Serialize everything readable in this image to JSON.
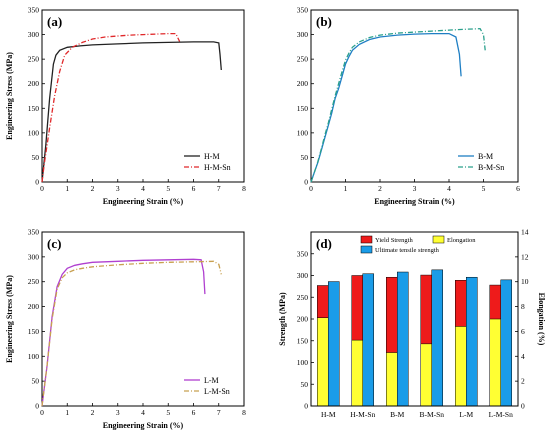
{
  "chart_data": [
    {
      "type": "line",
      "panel_label": "(a)",
      "xlabel": "Engineering Strain (%)",
      "ylabel": "Engineering Stress (MPa)",
      "xlim": [
        0,
        8
      ],
      "ylim": [
        0,
        350
      ],
      "xticks": [
        "0",
        "1",
        "2",
        "3",
        "4",
        "5",
        "6",
        "7",
        "8"
      ],
      "yticks": [
        "0",
        "50",
        "100",
        "150",
        "200",
        "250",
        "300",
        "350"
      ],
      "legend_position": "bottom-right",
      "series": [
        {
          "name": "H-M",
          "color": "#222222",
          "dash": "solid",
          "x": [
            0,
            0.15,
            0.3,
            0.45,
            0.55,
            0.7,
            1.0,
            1.5,
            2.0,
            3.0,
            4.0,
            5.0,
            6.0,
            6.8,
            7.0,
            7.05,
            7.1
          ],
          "y": [
            0,
            75,
            170,
            240,
            258,
            268,
            274,
            277,
            279,
            281,
            283,
            284,
            285,
            285,
            283,
            260,
            228
          ]
        },
        {
          "name": "H-M-Sn",
          "color": "#e0282a",
          "dash": "dashdot",
          "x": [
            0,
            0.1,
            0.3,
            0.5,
            0.7,
            0.9,
            1.2,
            1.6,
            2.0,
            2.5,
            3.0,
            3.5,
            4.0,
            4.5,
            5.0,
            5.3,
            5.45
          ],
          "y": [
            0,
            40,
            110,
            175,
            225,
            258,
            274,
            284,
            291,
            295,
            297,
            299,
            300,
            301,
            302,
            302,
            286
          ]
        }
      ]
    },
    {
      "type": "line",
      "panel_label": "(b)",
      "xlabel": "Engineering Strain (%)",
      "ylabel": "",
      "xlim": [
        0,
        6
      ],
      "ylim": [
        0,
        350
      ],
      "xticks": [
        "0",
        "1",
        "2",
        "3",
        "4",
        "5",
        "6"
      ],
      "yticks": [
        "0",
        "50",
        "100",
        "150",
        "200",
        "250",
        "300",
        "350"
      ],
      "legend_position": "bottom-right",
      "series": [
        {
          "name": "B-M",
          "color": "#1f7fc4",
          "dash": "solid",
          "x": [
            0,
            0.1,
            0.2,
            0.3,
            0.4,
            0.5,
            0.6,
            0.7,
            0.8,
            0.9,
            1.0,
            1.1,
            1.2,
            1.4,
            1.7,
            2.0,
            2.5,
            3.0,
            3.5,
            4.0,
            4.2,
            4.3,
            4.35
          ],
          "y": [
            0,
            20,
            40,
            65,
            90,
            115,
            140,
            170,
            190,
            215,
            240,
            255,
            268,
            280,
            290,
            295,
            299,
            301,
            302,
            302,
            295,
            260,
            215
          ]
        },
        {
          "name": "B-M-Sn",
          "color": "#2aa08c",
          "dash": "dashdot",
          "x": [
            0,
            0.1,
            0.2,
            0.3,
            0.4,
            0.5,
            0.6,
            0.7,
            0.8,
            0.9,
            1.0,
            1.1,
            1.2,
            1.4,
            1.7,
            2.0,
            2.5,
            3.0,
            3.5,
            4.0,
            4.5,
            4.9,
            5.0,
            5.05
          ],
          "y": [
            0,
            20,
            42,
            68,
            95,
            120,
            148,
            175,
            200,
            225,
            248,
            262,
            274,
            285,
            294,
            299,
            303,
            305,
            307,
            309,
            311,
            312,
            300,
            268
          ]
        }
      ]
    },
    {
      "type": "line",
      "panel_label": "(c)",
      "xlabel": "Engineering Strain (%)",
      "ylabel": "Engineering Stress (MPa)",
      "xlim": [
        0,
        8
      ],
      "ylim": [
        0,
        350
      ],
      "xticks": [
        "0",
        "1",
        "2",
        "3",
        "4",
        "5",
        "6",
        "7",
        "8"
      ],
      "yticks": [
        "0",
        "50",
        "100",
        "150",
        "200",
        "250",
        "300",
        "350"
      ],
      "legend_position": "bottom-right",
      "series": [
        {
          "name": "L-M",
          "color": "#b040d0",
          "dash": "solid",
          "x": [
            0,
            0.2,
            0.4,
            0.6,
            0.8,
            1.0,
            1.3,
            1.6,
            2.0,
            3.0,
            4.0,
            5.0,
            6.0,
            6.3,
            6.4,
            6.45
          ],
          "y": [
            0,
            80,
            180,
            240,
            265,
            277,
            283,
            286,
            289,
            291,
            293,
            294,
            295,
            294,
            270,
            225
          ]
        },
        {
          "name": "L-M-Sn",
          "color": "#c8a050",
          "dash": "dashdot",
          "x": [
            0,
            0.2,
            0.4,
            0.6,
            0.8,
            1.0,
            1.3,
            1.6,
            2.0,
            3.0,
            4.0,
            5.0,
            6.0,
            6.8,
            7.0,
            7.1
          ],
          "y": [
            0,
            80,
            175,
            235,
            258,
            268,
            274,
            277,
            280,
            284,
            287,
            289,
            290,
            291,
            285,
            265
          ]
        }
      ]
    },
    {
      "type": "bar",
      "panel_label": "(d)",
      "categories": [
        "H-M",
        "H-M-Sn",
        "B-M",
        "B-M-Sn",
        "L-M",
        "L-M-Sn"
      ],
      "ylabel": "Strength (MPa)",
      "y2label": "Elongation (%)",
      "ylim": [
        0,
        400
      ],
      "y2lim": [
        0,
        14
      ],
      "yticks": [
        "0",
        "50",
        "100",
        "150",
        "200",
        "250",
        "300",
        "350"
      ],
      "y2ticks": [
        "0",
        "2",
        "4",
        "6",
        "8",
        "10",
        "12",
        "14"
      ],
      "legend_position": "top",
      "series": [
        {
          "name": "Yield Strength",
          "color": "#ee1b1b",
          "axis": "left",
          "values": [
            277,
            300,
            296,
            301,
            289,
            278
          ]
        },
        {
          "name": "Ultimate tensile strength",
          "color": "#1a9ce8",
          "axis": "left",
          "values": [
            286,
            304,
            308,
            313,
            296,
            290
          ]
        },
        {
          "name": "Elongation",
          "color": "#ffff33",
          "axis": "right",
          "values": [
            7.1,
            5.3,
            4.3,
            5.0,
            6.4,
            7.0
          ]
        }
      ]
    }
  ]
}
